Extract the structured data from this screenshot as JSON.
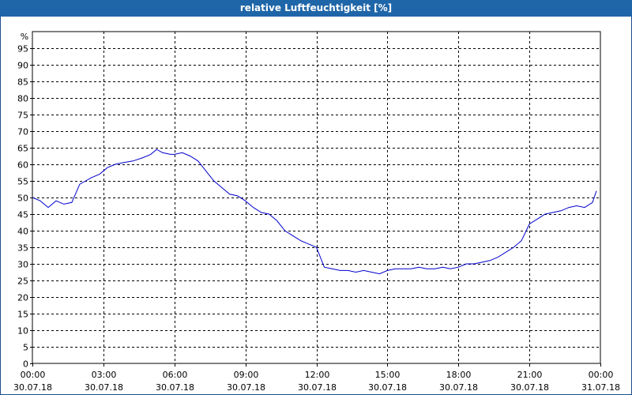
{
  "window": {
    "title": "relative Luftfeuchtigkeit [%]"
  },
  "colors": {
    "titlebar": "#1f66a8",
    "line": "#0000cc",
    "grid": "#000000"
  },
  "chart_data": {
    "type": "line",
    "title": "relative Luftfeuchtigkeit [%]",
    "ylabel": "%",
    "xlabel": "",
    "ylim": [
      0,
      100
    ],
    "xlim_hours": [
      0,
      24
    ],
    "grid": true,
    "grid_style": "dashed",
    "y_ticks": [
      "0",
      "5",
      "10",
      "15",
      "20",
      "25",
      "30",
      "35",
      "40",
      "45",
      "50",
      "55",
      "60",
      "65",
      "70",
      "75",
      "80",
      "85",
      "90",
      "95"
    ],
    "x_ticks": [
      {
        "time": "00:00",
        "date": "30.07.18"
      },
      {
        "time": "03:00",
        "date": "30.07.18"
      },
      {
        "time": "06:00",
        "date": "30.07.18"
      },
      {
        "time": "09:00",
        "date": "30.07.18"
      },
      {
        "time": "12:00",
        "date": "30.07.18"
      },
      {
        "time": "15:00",
        "date": "30.07.18"
      },
      {
        "time": "18:00",
        "date": "30.07.18"
      },
      {
        "time": "21:00",
        "date": "30.07.18"
      },
      {
        "time": "00:00",
        "date": "31.07.18"
      }
    ],
    "series": [
      {
        "x": [
          "00:00",
          "00:20",
          "00:40",
          "01:00",
          "01:20",
          "01:40",
          "02:00",
          "02:15",
          "02:30",
          "02:50",
          "03:10",
          "03:30",
          "03:50",
          "04:15",
          "04:40",
          "05:00",
          "05:15",
          "05:30",
          "05:50",
          "06:00",
          "06:20",
          "06:40",
          "07:00",
          "07:20",
          "07:40",
          "08:00",
          "08:20",
          "08:40",
          "09:00",
          "09:20",
          "09:40",
          "10:00",
          "10:20",
          "10:40",
          "11:00",
          "11:20",
          "11:40",
          "12:00",
          "12:20",
          "12:40",
          "13:00",
          "13:20",
          "13:40",
          "14:00",
          "14:20",
          "14:40",
          "15:00",
          "15:20",
          "15:40",
          "16:00",
          "16:20",
          "16:40",
          "17:00",
          "17:20",
          "17:40",
          "18:00",
          "18:20",
          "18:40",
          "19:00",
          "19:20",
          "19:40",
          "20:00",
          "20:20",
          "20:40",
          "21:00",
          "21:20",
          "21:40",
          "22:00",
          "22:20",
          "22:40",
          "23:00",
          "23:20",
          "23:40",
          "23:50"
        ],
        "values": [
          50,
          49,
          47,
          49,
          48,
          48.5,
          54,
          55,
          56,
          57,
          59,
          60,
          60.5,
          61,
          62,
          63,
          64.5,
          63.5,
          63,
          63,
          63.5,
          62.5,
          61,
          58,
          55,
          53,
          51,
          50.5,
          49,
          47,
          45.5,
          45,
          43,
          40,
          38.5,
          37,
          36,
          35,
          29,
          28.5,
          28,
          28,
          27.5,
          28,
          27.5,
          27,
          28,
          28.5,
          28.5,
          28.5,
          29,
          28.5,
          28.5,
          29,
          28.5,
          29,
          30,
          30,
          30.5,
          31,
          32,
          33.5,
          35,
          37,
          42,
          43.5,
          45,
          45.5,
          46,
          47,
          47.5,
          47,
          48.5,
          52
        ]
      }
    ]
  }
}
